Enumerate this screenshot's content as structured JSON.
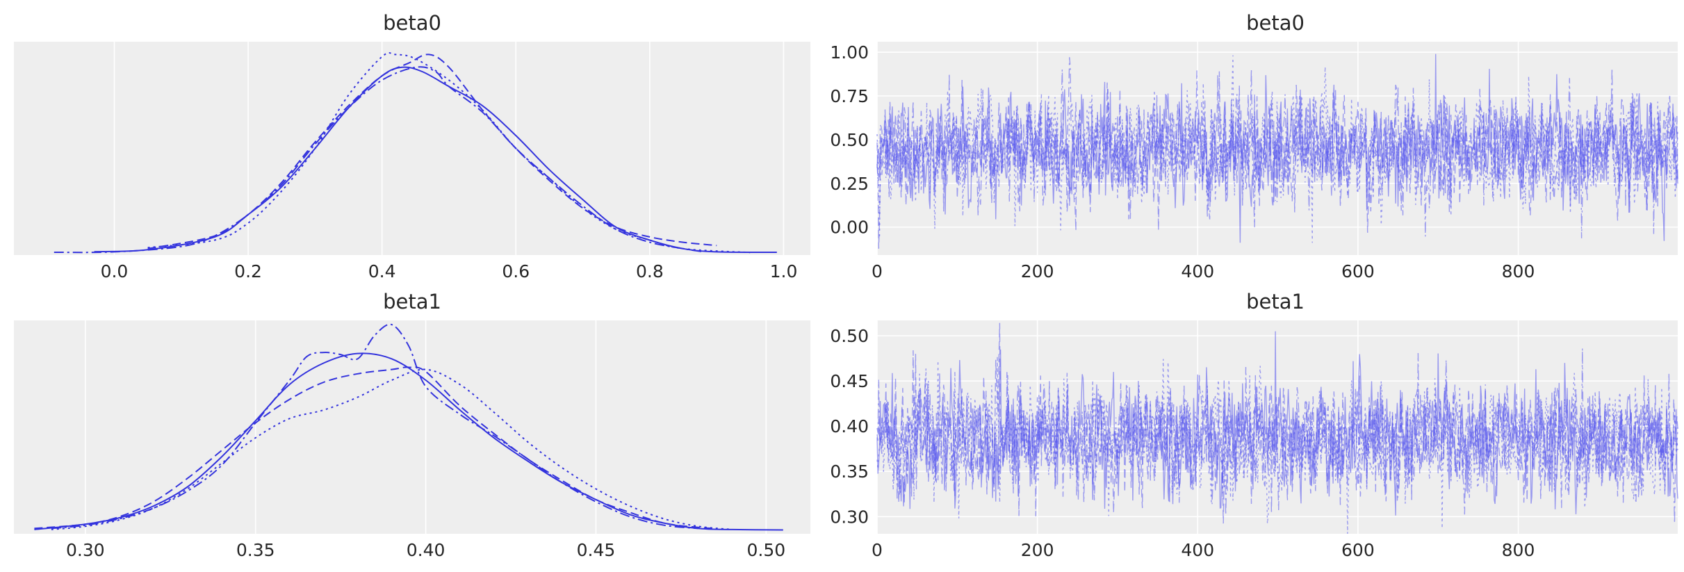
{
  "chart_data": [
    {
      "type": "line",
      "subtype": "kde",
      "title": "beta0",
      "xlim": [
        -0.15,
        1.04
      ],
      "xticks": [
        0.0,
        0.2,
        0.4,
        0.6,
        0.8,
        1.0
      ],
      "xtick_labels": [
        "0.0",
        "0.2",
        "0.4",
        "0.6",
        "0.8",
        "1.0"
      ],
      "grid": true,
      "background": "#eeeeee",
      "color": "#3333dd",
      "chains": 4,
      "line_styles": [
        "solid",
        "dotted",
        "dashed",
        "dashdot"
      ],
      "ylim": [
        0,
        1
      ],
      "series": [
        {
          "x": [
            -0.03,
            0.05,
            0.15,
            0.2,
            0.25,
            0.3,
            0.35,
            0.4,
            0.43,
            0.46,
            0.5,
            0.55,
            0.6,
            0.65,
            0.7,
            0.75,
            0.8,
            0.85,
            0.9,
            0.99
          ],
          "y": [
            0.016,
            0.025,
            0.085,
            0.19,
            0.32,
            0.5,
            0.69,
            0.84,
            0.88,
            0.86,
            0.79,
            0.7,
            0.56,
            0.4,
            0.26,
            0.13,
            0.07,
            0.03,
            0.015,
            0.013
          ]
        },
        {
          "x": [
            0.05,
            0.15,
            0.2,
            0.25,
            0.3,
            0.35,
            0.4,
            0.42,
            0.45,
            0.5,
            0.55,
            0.6,
            0.65,
            0.7,
            0.75,
            0.8,
            0.85,
            0.95
          ],
          "y": [
            0.035,
            0.07,
            0.15,
            0.3,
            0.5,
            0.75,
            0.93,
            0.94,
            0.92,
            0.82,
            0.68,
            0.5,
            0.36,
            0.22,
            0.12,
            0.07,
            0.03,
            0.012
          ]
        },
        {
          "x": [
            0.05,
            0.15,
            0.2,
            0.25,
            0.3,
            0.35,
            0.4,
            0.44,
            0.47,
            0.5,
            0.55,
            0.6,
            0.65,
            0.7,
            0.75,
            0.8,
            0.85,
            0.9
          ],
          "y": [
            0.03,
            0.09,
            0.19,
            0.34,
            0.53,
            0.7,
            0.84,
            0.9,
            0.94,
            0.88,
            0.68,
            0.5,
            0.35,
            0.22,
            0.13,
            0.085,
            0.06,
            0.045
          ]
        },
        {
          "x": [
            -0.09,
            0.0,
            0.1,
            0.15,
            0.2,
            0.25,
            0.3,
            0.35,
            0.4,
            0.45,
            0.48,
            0.5,
            0.55,
            0.6,
            0.65,
            0.7,
            0.75,
            0.8,
            0.85,
            0.88
          ],
          "y": [
            0.013,
            0.015,
            0.04,
            0.09,
            0.19,
            0.33,
            0.52,
            0.69,
            0.82,
            0.88,
            0.86,
            0.79,
            0.67,
            0.5,
            0.36,
            0.23,
            0.12,
            0.06,
            0.03,
            0.015
          ]
        }
      ]
    },
    {
      "type": "line",
      "subtype": "trace",
      "title": "beta0",
      "xlim": [
        0,
        999
      ],
      "ylim": [
        -0.16,
        1.06
      ],
      "xticks": [
        0,
        200,
        400,
        600,
        800
      ],
      "xtick_labels": [
        "0",
        "200",
        "400",
        "600",
        "800"
      ],
      "yticks": [
        0.0,
        0.25,
        0.5,
        0.75,
        1.0
      ],
      "ytick_labels": [
        "0.00",
        "0.25",
        "0.50",
        "0.75",
        "1.00"
      ],
      "grid": true,
      "background": "#eeeeee",
      "color": "#5555ee",
      "chains": 4,
      "draws_per_chain": 1000,
      "line_styles": [
        "solid",
        "dotted",
        "dashed",
        "dashdot"
      ],
      "mean": 0.44,
      "sd": 0.15,
      "extremes": [
        {
          "x": 697,
          "y": 0.99
        },
        {
          "x": 543,
          "y": -0.09
        },
        {
          "x": 248,
          "y": -0.02
        },
        {
          "x": 90,
          "y": 0.88
        }
      ]
    },
    {
      "type": "line",
      "subtype": "kde",
      "title": "beta1",
      "xlim": [
        0.279,
        0.513
      ],
      "xticks": [
        0.3,
        0.35,
        0.4,
        0.45,
        0.5
      ],
      "xtick_labels": [
        "0.30",
        "0.35",
        "0.40",
        "0.45",
        "0.50"
      ],
      "grid": true,
      "background": "#eeeeee",
      "color": "#3333dd",
      "chains": 4,
      "line_styles": [
        "solid",
        "dotted",
        "dashed",
        "dashdot"
      ],
      "ylim": [
        0,
        1
      ],
      "series": [
        {
          "x": [
            0.285,
            0.3,
            0.31,
            0.32,
            0.33,
            0.34,
            0.35,
            0.36,
            0.37,
            0.38,
            0.39,
            0.4,
            0.41,
            0.42,
            0.43,
            0.44,
            0.45,
            0.46,
            0.47,
            0.48,
            0.49,
            0.505
          ],
          "y": [
            0.02,
            0.045,
            0.075,
            0.13,
            0.22,
            0.36,
            0.53,
            0.7,
            0.8,
            0.845,
            0.82,
            0.72,
            0.58,
            0.45,
            0.34,
            0.24,
            0.16,
            0.09,
            0.05,
            0.025,
            0.02,
            0.018
          ]
        },
        {
          "x": [
            0.29,
            0.3,
            0.31,
            0.32,
            0.33,
            0.34,
            0.35,
            0.36,
            0.37,
            0.38,
            0.39,
            0.4,
            0.41,
            0.42,
            0.43,
            0.44,
            0.45,
            0.46,
            0.47,
            0.48,
            0.49
          ],
          "y": [
            0.02,
            0.035,
            0.065,
            0.12,
            0.21,
            0.33,
            0.45,
            0.54,
            0.58,
            0.64,
            0.72,
            0.77,
            0.7,
            0.57,
            0.43,
            0.31,
            0.21,
            0.13,
            0.07,
            0.035,
            0.02
          ]
        },
        {
          "x": [
            0.285,
            0.3,
            0.31,
            0.32,
            0.33,
            0.34,
            0.35,
            0.36,
            0.37,
            0.38,
            0.39,
            0.395,
            0.4,
            0.41,
            0.42,
            0.43,
            0.44,
            0.45,
            0.46,
            0.47,
            0.48,
            0.485
          ],
          "y": [
            0.025,
            0.045,
            0.08,
            0.15,
            0.26,
            0.39,
            0.52,
            0.63,
            0.71,
            0.75,
            0.77,
            0.78,
            0.76,
            0.6,
            0.47,
            0.35,
            0.25,
            0.16,
            0.1,
            0.05,
            0.03,
            0.025
          ]
        },
        {
          "x": [
            0.29,
            0.3,
            0.31,
            0.32,
            0.33,
            0.34,
            0.35,
            0.36,
            0.365,
            0.37,
            0.375,
            0.38,
            0.385,
            0.39,
            0.395,
            0.4,
            0.41,
            0.42,
            0.43,
            0.44,
            0.45,
            0.46,
            0.47,
            0.48
          ],
          "y": [
            0.025,
            0.04,
            0.07,
            0.12,
            0.2,
            0.32,
            0.52,
            0.72,
            0.83,
            0.85,
            0.84,
            0.82,
            0.93,
            0.98,
            0.88,
            0.69,
            0.56,
            0.46,
            0.35,
            0.24,
            0.15,
            0.08,
            0.04,
            0.025
          ]
        }
      ]
    },
    {
      "type": "line",
      "subtype": "trace",
      "title": "beta1",
      "xlim": [
        0,
        999
      ],
      "ylim": [
        0.281,
        0.517
      ],
      "xticks": [
        0,
        200,
        400,
        600,
        800
      ],
      "xtick_labels": [
        "0",
        "200",
        "400",
        "600",
        "800"
      ],
      "yticks": [
        0.3,
        0.35,
        0.4,
        0.45,
        0.5
      ],
      "ytick_labels": [
        "0.30",
        "0.35",
        "0.40",
        "0.45",
        "0.50"
      ],
      "grid": true,
      "background": "#eeeeee",
      "color": "#5555ee",
      "chains": 4,
      "draws_per_chain": 1000,
      "line_styles": [
        "solid",
        "dotted",
        "dashed",
        "dashdot"
      ],
      "mean": 0.385,
      "sd": 0.03,
      "extremes": [
        {
          "x": 497,
          "y": 0.505
        },
        {
          "x": 705,
          "y": 0.287
        },
        {
          "x": 48,
          "y": 0.48
        },
        {
          "x": 880,
          "y": 0.486
        }
      ]
    }
  ]
}
